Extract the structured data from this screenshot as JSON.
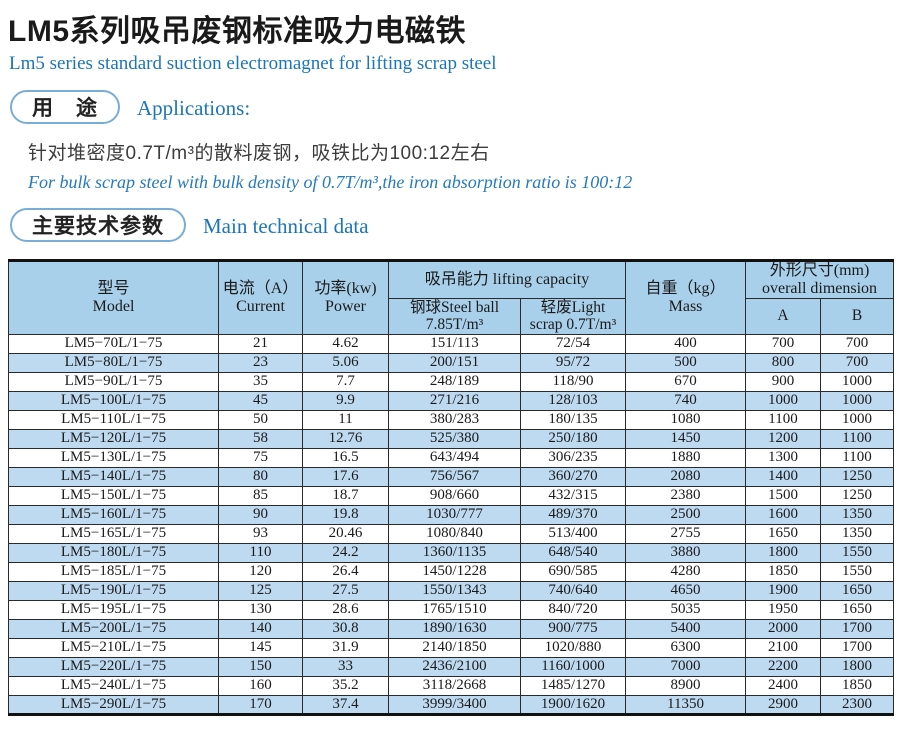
{
  "header": {
    "title_zh": "LM5系列吸吊废钢标准吸力电磁铁",
    "title_en": "Lm5 series standard suction electromagnet for lifting scrap steel"
  },
  "applications": {
    "pill_zh": "用　途",
    "heading_en": "Applications:",
    "body_zh": "针对堆密度0.7T/m³的散料废钢，吸铁比为100:12左右",
    "body_en": "For bulk scrap steel with bulk density of 0.7T/m³,the iron absorption ratio is 100:12"
  },
  "tech_section": {
    "pill_zh": "主要技术参数",
    "heading_en": "Main technical data"
  },
  "table": {
    "headers": {
      "model_zh": "型号",
      "model_en": "Model",
      "current_zh": "电流（A）",
      "current_en": "Current",
      "power_zh": "功率(kw)",
      "power_en": "Power",
      "capacity": "吸吊能力 lifting capacity",
      "steel_ball_l1": "钢球Steel ball",
      "steel_ball_l2": "7.85T/m³",
      "light_scrap_l1": "轻废Light",
      "light_scrap_l2": "scrap 0.7T/m³",
      "mass_zh": "自重（kg）",
      "mass_en": "Mass",
      "dims_zh": "外形尺寸(mm)",
      "dims_en": "overall dimension",
      "dim_a": "A",
      "dim_b": "B"
    },
    "column_keys": [
      "model",
      "current",
      "power",
      "steel-ball",
      "light-scrap",
      "mass",
      "dim-a",
      "dim-b"
    ],
    "rows": [
      [
        "LM5−70L/1−75",
        "21",
        "4.62",
        "151/113",
        "72/54",
        "400",
        "700",
        "700"
      ],
      [
        "LM5−80L/1−75",
        "23",
        "5.06",
        "200/151",
        "95/72",
        "500",
        "800",
        "700"
      ],
      [
        "LM5−90L/1−75",
        "35",
        "7.7",
        "248/189",
        "118/90",
        "670",
        "900",
        "1000"
      ],
      [
        "LM5−100L/1−75",
        "45",
        "9.9",
        "271/216",
        "128/103",
        "740",
        "1000",
        "1000"
      ],
      [
        "LM5−110L/1−75",
        "50",
        "11",
        "380/283",
        "180/135",
        "1080",
        "1100",
        "1000"
      ],
      [
        "LM5−120L/1−75",
        "58",
        "12.76",
        "525/380",
        "250/180",
        "1450",
        "1200",
        "1100"
      ],
      [
        "LM5−130L/1−75",
        "75",
        "16.5",
        "643/494",
        "306/235",
        "1880",
        "1300",
        "1100"
      ],
      [
        "LM5−140L/1−75",
        "80",
        "17.6",
        "756/567",
        "360/270",
        "2080",
        "1400",
        "1250"
      ],
      [
        "LM5−150L/1−75",
        "85",
        "18.7",
        "908/660",
        "432/315",
        "2380",
        "1500",
        "1250"
      ],
      [
        "LM5−160L/1−75",
        "90",
        "19.8",
        "1030/777",
        "489/370",
        "2500",
        "1600",
        "1350"
      ],
      [
        "LM5−165L/1−75",
        "93",
        "20.46",
        "1080/840",
        "513/400",
        "2755",
        "1650",
        "1350"
      ],
      [
        "LM5−180L/1−75",
        "110",
        "24.2",
        "1360/1135",
        "648/540",
        "3880",
        "1800",
        "1550"
      ],
      [
        "LM5−185L/1−75",
        "120",
        "26.4",
        "1450/1228",
        "690/585",
        "4280",
        "1850",
        "1550"
      ],
      [
        "LM5−190L/1−75",
        "125",
        "27.5",
        "1550/1343",
        "740/640",
        "4650",
        "1900",
        "1650"
      ],
      [
        "LM5−195L/1−75",
        "130",
        "28.6",
        "1765/1510",
        "840/720",
        "5035",
        "1950",
        "1650"
      ],
      [
        "LM5−200L/1−75",
        "140",
        "30.8",
        "1890/1630",
        "900/775",
        "5400",
        "2000",
        "1700"
      ],
      [
        "LM5−210L/1−75",
        "145",
        "31.9",
        "2140/1850",
        "1020/880",
        "6300",
        "2100",
        "1700"
      ],
      [
        "LM5−220L/1−75",
        "150",
        "33",
        "2436/2100",
        "1160/1000",
        "7000",
        "2200",
        "1800"
      ],
      [
        "LM5−240L/1−75",
        "160",
        "35.2",
        "3118/2668",
        "1485/1270",
        "8900",
        "2400",
        "1850"
      ],
      [
        "LM5−290L/1−75",
        "170",
        "37.4",
        "3999/3400",
        "1900/1620",
        "11350",
        "2900",
        "2300"
      ]
    ]
  },
  "colors": {
    "accent_blue": "#1b75bb",
    "pill_border": "#79add8",
    "table_header_bg": "#a9d0ea",
    "row_stripe_bg": "#bedaf1",
    "table_border": "#111111"
  }
}
